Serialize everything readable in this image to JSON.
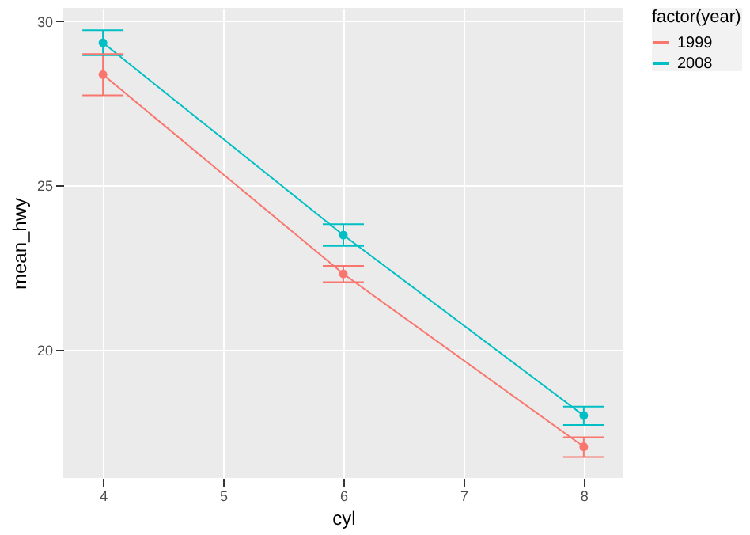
{
  "chart_data": {
    "type": "line",
    "xlabel": "cyl",
    "ylabel": "mean_hwy",
    "legend_title": "factor(year)",
    "x": [
      4,
      6,
      8
    ],
    "series": [
      {
        "name": "1999",
        "color": "#f8766d",
        "values": [
          28.37,
          22.31,
          17.05
        ],
        "errors": [
          [
            27.74,
            29.0
          ],
          [
            22.06,
            22.55
          ],
          [
            16.74,
            17.34
          ]
        ]
      },
      {
        "name": "2008",
        "color": "#00bfc4",
        "values": [
          29.34,
          23.49,
          18.0
        ],
        "errors": [
          [
            28.96,
            29.72
          ],
          [
            23.16,
            23.82
          ],
          [
            17.71,
            18.27
          ]
        ]
      }
    ],
    "xlim": [
      3.67,
      8.33
    ],
    "xticks": [
      4,
      5,
      6,
      7,
      8
    ],
    "ylim": [
      16.1,
      30.4
    ],
    "yticks": [
      20,
      25,
      30
    ],
    "grid": true,
    "legend": "right",
    "marker": "circle",
    "line_style": "solid"
  }
}
